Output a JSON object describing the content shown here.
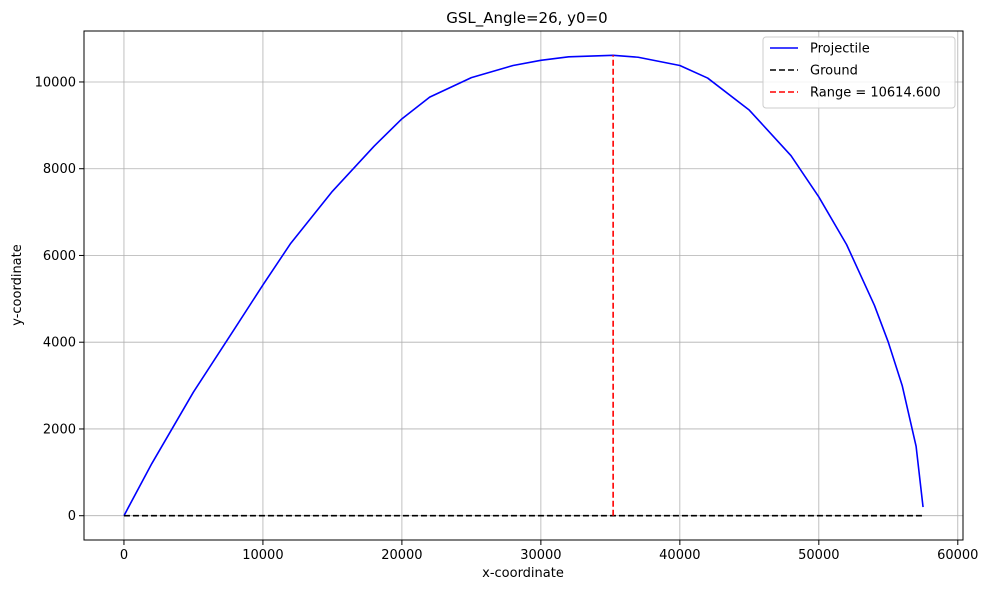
{
  "chart_data": {
    "type": "line",
    "title": "GSL_Angle=26, y0=0",
    "xlabel": "x-coordinate",
    "ylabel": "y-coordinate",
    "xlim": [
      -2875,
      60375
    ],
    "ylim": [
      -560,
      11175
    ],
    "xticks": [
      0,
      10000,
      20000,
      30000,
      40000,
      50000,
      60000
    ],
    "yticks": [
      0,
      2000,
      4000,
      6000,
      8000,
      10000
    ],
    "grid": true,
    "legend_position": "top-right",
    "series": [
      {
        "name": "Projectile",
        "color": "#0000ff",
        "style": "solid",
        "points": [
          [
            0,
            0
          ],
          [
            2000,
            1200
          ],
          [
            5000,
            2850
          ],
          [
            8000,
            4330
          ],
          [
            10000,
            5320
          ],
          [
            12000,
            6280
          ],
          [
            15000,
            7480
          ],
          [
            18000,
            8520
          ],
          [
            20000,
            9150
          ],
          [
            22000,
            9650
          ],
          [
            25000,
            10100
          ],
          [
            28000,
            10380
          ],
          [
            30000,
            10500
          ],
          [
            32000,
            10580
          ],
          [
            35200,
            10614.6
          ],
          [
            37000,
            10570
          ],
          [
            40000,
            10380
          ],
          [
            42000,
            10090
          ],
          [
            45000,
            9350
          ],
          [
            48000,
            8300
          ],
          [
            50000,
            7350
          ],
          [
            52000,
            6250
          ],
          [
            54000,
            4850
          ],
          [
            55000,
            4000
          ],
          [
            56000,
            3000
          ],
          [
            57000,
            1600
          ],
          [
            57500,
            200
          ]
        ]
      },
      {
        "name": "Ground",
        "color": "#000000",
        "style": "dashed",
        "points": [
          [
            0,
            0
          ],
          [
            57500,
            0
          ]
        ]
      },
      {
        "name": "Range = 10614.600",
        "color": "#ff0000",
        "style": "dashed",
        "points": [
          [
            35200,
            0
          ],
          [
            35200,
            10614.6
          ]
        ]
      }
    ]
  }
}
